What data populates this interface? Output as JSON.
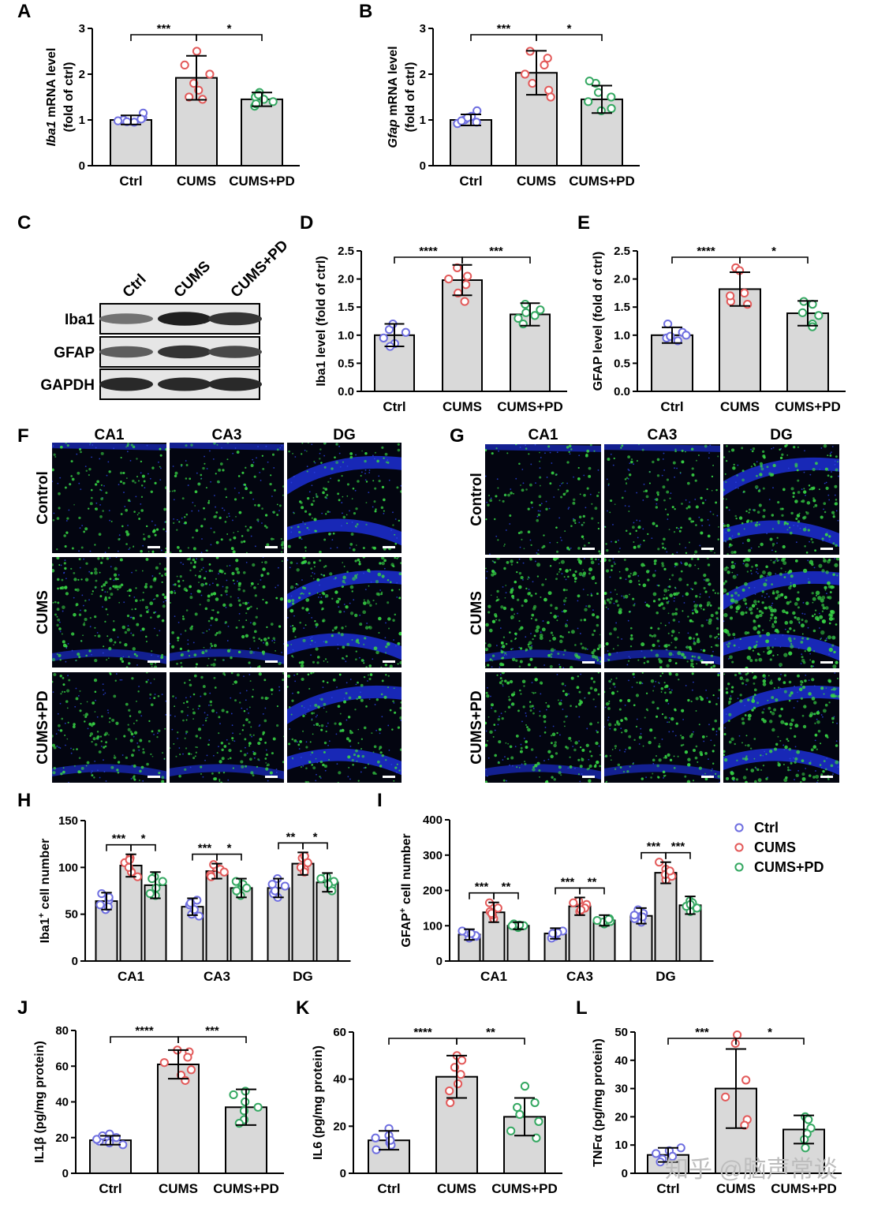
{
  "colors": {
    "ctrl": "#6f6fe0",
    "cums": "#e35a5a",
    "pd": "#35a862",
    "bar": "#d9d9d9",
    "blue_tissue": "#1b2cc9",
    "green_cells": "#38d645"
  },
  "watermark": "知乎 @脑声常谈",
  "legend": {
    "items": [
      "Ctrl",
      "CUMS",
      "CUMS+PD"
    ]
  },
  "blot": {
    "panel": "C",
    "lanes": [
      "Ctrl",
      "CUMS",
      "CUMS+PD"
    ],
    "bands": [
      {
        "name": "Iba1",
        "intensity": [
          0.55,
          0.95,
          0.85
        ]
      },
      {
        "name": "GFAP",
        "intensity": [
          0.65,
          0.85,
          0.75
        ]
      },
      {
        "name": "GAPDH",
        "intensity": [
          0.9,
          0.9,
          0.9
        ]
      }
    ]
  },
  "micro": [
    {
      "panel": "F",
      "columns": [
        "CA1",
        "CA3",
        "DG"
      ],
      "rows": [
        "Control",
        "CUMS",
        "CUMS+PD"
      ],
      "density": [
        [
          0.35,
          0.35,
          0.35
        ],
        [
          0.65,
          0.6,
          0.65
        ],
        [
          0.45,
          0.45,
          0.45
        ]
      ]
    },
    {
      "panel": "G",
      "columns": [
        "CA1",
        "CA3",
        "DG"
      ],
      "rows": [
        "Control",
        "CUMS",
        "CUMS+PD"
      ],
      "density": [
        [
          0.3,
          0.35,
          0.6
        ],
        [
          0.8,
          0.8,
          1.0
        ],
        [
          0.55,
          0.55,
          0.75
        ]
      ]
    }
  ],
  "chart_data": [
    {
      "panel": "A",
      "type": "bar",
      "categories": [
        "Ctrl",
        "CUMS",
        "CUMS+PD"
      ],
      "ylabel_italic": "Iba1",
      "ylabel_rest": " mRNA level",
      "ylabel2": "(fold of ctrl)",
      "ylim": [
        0,
        3
      ],
      "yticks": [
        "0",
        "1",
        "2",
        "3"
      ],
      "values": [
        1.0,
        1.92,
        1.45
      ],
      "errors": [
        0.1,
        0.48,
        0.15
      ],
      "points": [
        [
          1.0,
          1.05,
          0.95,
          1.15,
          0.98,
          1.02,
          0.96
        ],
        [
          1.5,
          2.2,
          2.5,
          1.8,
          1.45,
          1.65,
          2.0
        ],
        [
          1.3,
          1.5,
          1.6,
          1.4,
          1.55,
          1.35,
          1.45
        ]
      ],
      "sig": [
        {
          "from": 0,
          "to": 1,
          "label": "***"
        },
        {
          "from": 1,
          "to": 2,
          "label": "*"
        }
      ]
    },
    {
      "panel": "B",
      "type": "bar",
      "categories": [
        "Ctrl",
        "CUMS",
        "CUMS+PD"
      ],
      "ylabel_italic": "Gfap",
      "ylabel_rest": " mRNA level",
      "ylabel2": "(fold of ctrl)",
      "ylim": [
        0,
        3
      ],
      "yticks": [
        "0",
        "1",
        "2",
        "3"
      ],
      "values": [
        1.0,
        2.03,
        1.45
      ],
      "errors": [
        0.12,
        0.48,
        0.3
      ],
      "points": [
        [
          1.0,
          1.2,
          0.92,
          1.08,
          0.95,
          1.05,
          0.98
        ],
        [
          2.5,
          2.35,
          1.65,
          1.5,
          1.8,
          2.0,
          2.2
        ],
        [
          1.8,
          1.85,
          1.25,
          1.2,
          1.4,
          1.5,
          1.6
        ]
      ],
      "sig": [
        {
          "from": 0,
          "to": 1,
          "label": "***"
        },
        {
          "from": 1,
          "to": 2,
          "label": "*"
        }
      ]
    },
    {
      "panel": "D",
      "type": "bar",
      "categories": [
        "Ctrl",
        "CUMS",
        "CUMS+PD"
      ],
      "ylabel_italic": "",
      "ylabel_rest": "Iba1 level (fold of ctrl)",
      "ylabel2": "",
      "ylim": [
        0,
        2.5
      ],
      "yticks": [
        "0.0",
        "0.5",
        "1.0",
        "1.5",
        "2.0",
        "2.5"
      ],
      "values": [
        1.0,
        1.98,
        1.37
      ],
      "errors": [
        0.2,
        0.27,
        0.2
      ],
      "points": [
        [
          1.1,
          0.85,
          1.2,
          0.95,
          0.8,
          1.05
        ],
        [
          2.2,
          2.05,
          1.75,
          1.6,
          2.0,
          1.9
        ],
        [
          1.55,
          1.45,
          1.2,
          1.3,
          1.35,
          1.4
        ]
      ],
      "sig": [
        {
          "from": 0,
          "to": 1,
          "label": "****"
        },
        {
          "from": 1,
          "to": 2,
          "label": "***"
        }
      ]
    },
    {
      "panel": "E",
      "type": "bar",
      "categories": [
        "Ctrl",
        "CUMS",
        "CUMS+PD"
      ],
      "ylabel_italic": "",
      "ylabel_rest": "GFAP level (fold of ctrl)",
      "ylabel2": "",
      "ylim": [
        0,
        2.5
      ],
      "yticks": [
        "0.0",
        "0.5",
        "1.0",
        "1.5",
        "2.0",
        "2.5"
      ],
      "values": [
        1.0,
        1.82,
        1.39
      ],
      "errors": [
        0.14,
        0.3,
        0.22
      ],
      "points": [
        [
          1.2,
          0.95,
          1.05,
          0.9,
          1.0,
          0.98
        ],
        [
          2.2,
          2.15,
          1.55,
          1.6,
          1.75,
          1.7
        ],
        [
          1.6,
          1.55,
          1.2,
          1.15,
          1.4,
          1.35
        ]
      ],
      "sig": [
        {
          "from": 0,
          "to": 1,
          "label": "****"
        },
        {
          "from": 1,
          "to": 2,
          "label": "*"
        }
      ]
    },
    {
      "panel": "H",
      "type": "grouped-bar",
      "categories": [
        "CA1",
        "CA3",
        "DG"
      ],
      "ylabel_italic": "",
      "ylabel_rest": "Iba1",
      "ylabel_sup": "+",
      "ylabel_after": " cell number",
      "ylabel2": "",
      "ylim": [
        0,
        150
      ],
      "yticks": [
        "0",
        "50",
        "100",
        "150"
      ],
      "series": [
        {
          "name": "Ctrl",
          "values": [
            64,
            58,
            78
          ],
          "errors": [
            9,
            9,
            10
          ]
        },
        {
          "name": "CUMS",
          "values": [
            102,
            96,
            104
          ],
          "errors": [
            12,
            8,
            12
          ]
        },
        {
          "name": "CUMS+PD",
          "values": [
            81,
            78,
            84
          ],
          "errors": [
            14,
            10,
            10
          ]
        }
      ],
      "points": [
        [
          [
            55,
            60,
            65,
            72,
            58,
            68
          ],
          [
            50,
            55,
            60,
            65,
            48,
            62
          ],
          [
            68,
            72,
            80,
            88,
            75,
            82
          ]
        ],
        [
          [
            110,
            95,
            105,
            100,
            90,
            108
          ],
          [
            100,
            92,
            98,
            95,
            103,
            90
          ],
          [
            110,
            98,
            100,
            112,
            95,
            105
          ]
        ],
        [
          [
            90,
            85,
            70,
            78,
            88,
            72
          ],
          [
            70,
            80,
            85,
            75,
            82,
            78
          ],
          [
            90,
            88,
            80,
            75,
            85,
            82
          ]
        ]
      ],
      "sig": [
        [
          {
            "from": 0,
            "to": 1,
            "label": "***"
          },
          {
            "from": 1,
            "to": 2,
            "label": "*"
          }
        ],
        [
          {
            "from": 0,
            "to": 1,
            "label": "***"
          },
          {
            "from": 1,
            "to": 2,
            "label": "*"
          }
        ],
        [
          {
            "from": 0,
            "to": 1,
            "label": "**"
          },
          {
            "from": 1,
            "to": 2,
            "label": "*"
          }
        ]
      ]
    },
    {
      "panel": "I",
      "type": "grouped-bar",
      "categories": [
        "CA1",
        "CA3",
        "DG"
      ],
      "ylabel_italic": "",
      "ylabel_rest": "GFAP",
      "ylabel_sup": "+",
      "ylabel_after": " cell number",
      "ylabel2": "",
      "ylim": [
        0,
        400
      ],
      "yticks": [
        "0",
        "100",
        "200",
        "300",
        "400"
      ],
      "series": [
        {
          "name": "Ctrl",
          "values": [
            75,
            78,
            128
          ],
          "errors": [
            15,
            15,
            22
          ]
        },
        {
          "name": "CUMS",
          "values": [
            138,
            155,
            250
          ],
          "errors": [
            28,
            25,
            30
          ]
        },
        {
          "name": "CUMS+PD",
          "values": [
            100,
            115,
            158
          ],
          "errors": [
            10,
            15,
            25
          ]
        }
      ],
      "points": [
        [
          [
            65,
            70,
            80,
            85,
            72,
            78
          ],
          [
            70,
            75,
            85,
            80,
            65,
            78
          ],
          [
            110,
            120,
            135,
            145,
            125,
            130
          ]
        ],
        [
          [
            120,
            130,
            150,
            165,
            140,
            135
          ],
          [
            140,
            160,
            170,
            150,
            145,
            165
          ],
          [
            230,
            260,
            280,
            245,
            240,
            255
          ]
        ],
        [
          [
            95,
            100,
            105,
            98,
            102,
            100
          ],
          [
            105,
            110,
            120,
            115,
            112,
            118
          ],
          [
            140,
            150,
            170,
            165,
            155,
            160
          ]
        ]
      ],
      "sig": [
        [
          {
            "from": 0,
            "to": 1,
            "label": "***"
          },
          {
            "from": 1,
            "to": 2,
            "label": "**"
          }
        ],
        [
          {
            "from": 0,
            "to": 1,
            "label": "***"
          },
          {
            "from": 1,
            "to": 2,
            "label": "**"
          }
        ],
        [
          {
            "from": 0,
            "to": 1,
            "label": "***"
          },
          {
            "from": 1,
            "to": 2,
            "label": "***"
          }
        ]
      ]
    },
    {
      "panel": "J",
      "type": "bar",
      "categories": [
        "Ctrl",
        "CUMS",
        "CUMS+PD"
      ],
      "ylabel_italic": "",
      "ylabel_rest": "IL1β (pg/mg protein)",
      "ylabel2": "",
      "ylim": [
        0,
        80
      ],
      "yticks": [
        "0",
        "20",
        "40",
        "60",
        "80"
      ],
      "values": [
        18.5,
        61,
        37
      ],
      "errors": [
        2.5,
        8,
        10
      ],
      "points": [
        [
          17,
          20,
          18,
          22,
          16,
          19,
          21
        ],
        [
          69,
          68,
          62,
          58,
          55,
          52,
          65
        ],
        [
          46,
          44,
          37,
          30,
          28,
          40,
          35
        ]
      ],
      "sig": [
        {
          "from": 0,
          "to": 1,
          "label": "****"
        },
        {
          "from": 1,
          "to": 2,
          "label": "***"
        }
      ]
    },
    {
      "panel": "K",
      "type": "bar",
      "categories": [
        "Ctrl",
        "CUMS",
        "CUMS+PD"
      ],
      "ylabel_italic": "",
      "ylabel_rest": "IL6 (pg/mg protein)",
      "ylabel2": "",
      "ylim": [
        0,
        60
      ],
      "yticks": [
        "0",
        "20",
        "40",
        "60"
      ],
      "values": [
        14,
        41,
        24
      ],
      "errors": [
        4,
        9,
        8
      ],
      "points": [
        [
          19,
          16,
          13,
          10,
          12,
          14,
          15
        ],
        [
          50,
          48,
          45,
          38,
          35,
          30,
          42
        ],
        [
          37,
          30,
          25,
          18,
          15,
          22,
          28
        ]
      ],
      "sig": [
        {
          "from": 0,
          "to": 1,
          "label": "****"
        },
        {
          "from": 1,
          "to": 2,
          "label": "**"
        }
      ]
    },
    {
      "panel": "L",
      "type": "bar",
      "categories": [
        "Ctrl",
        "CUMS",
        "CUMS+PD"
      ],
      "ylabel_italic": "",
      "ylabel_rest": "TNFα (pg/mg protein)",
      "ylabel2": "",
      "ylim": [
        0,
        50
      ],
      "yticks": [
        "0",
        "10",
        "20",
        "30",
        "40",
        "50"
      ],
      "values": [
        6.5,
        30,
        15.5
      ],
      "errors": [
        2.5,
        14,
        5
      ],
      "points": [
        [
          8,
          5,
          9,
          6,
          4,
          7
        ],
        [
          49,
          46,
          33,
          27,
          19,
          17
        ],
        [
          20,
          19,
          16,
          14,
          9,
          12
        ]
      ],
      "sig": [
        {
          "from": 0,
          "to": 1,
          "label": "***"
        },
        {
          "from": 1,
          "to": 2,
          "label": "*"
        }
      ]
    }
  ]
}
